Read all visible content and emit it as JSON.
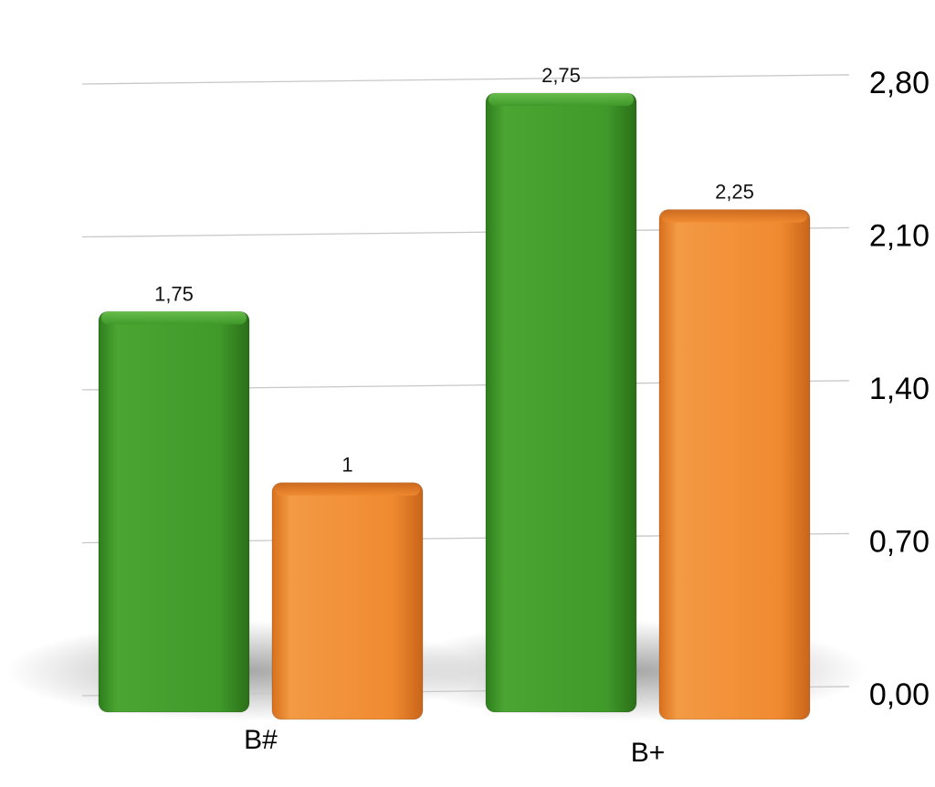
{
  "chart_data": {
    "type": "bar",
    "categories": [
      "B#",
      "B+"
    ],
    "series": [
      {
        "values": [
          1.75,
          2.75
        ],
        "color": "#3f9a2a",
        "value_labels": [
          "1,75",
          "2,75"
        ]
      },
      {
        "values": [
          1.0,
          2.25
        ],
        "color": "#f08a30",
        "value_labels": [
          "1",
          "2,25"
        ]
      }
    ],
    "yticks": [
      0,
      0.7,
      1.4,
      2.1,
      2.8
    ],
    "ytick_labels": [
      "0,00",
      "0,70",
      "1,40",
      "2,10",
      "2,80"
    ],
    "ylim": [
      0,
      2.8
    ],
    "y_axis_side": "right",
    "grid": true,
    "style": "3d"
  }
}
